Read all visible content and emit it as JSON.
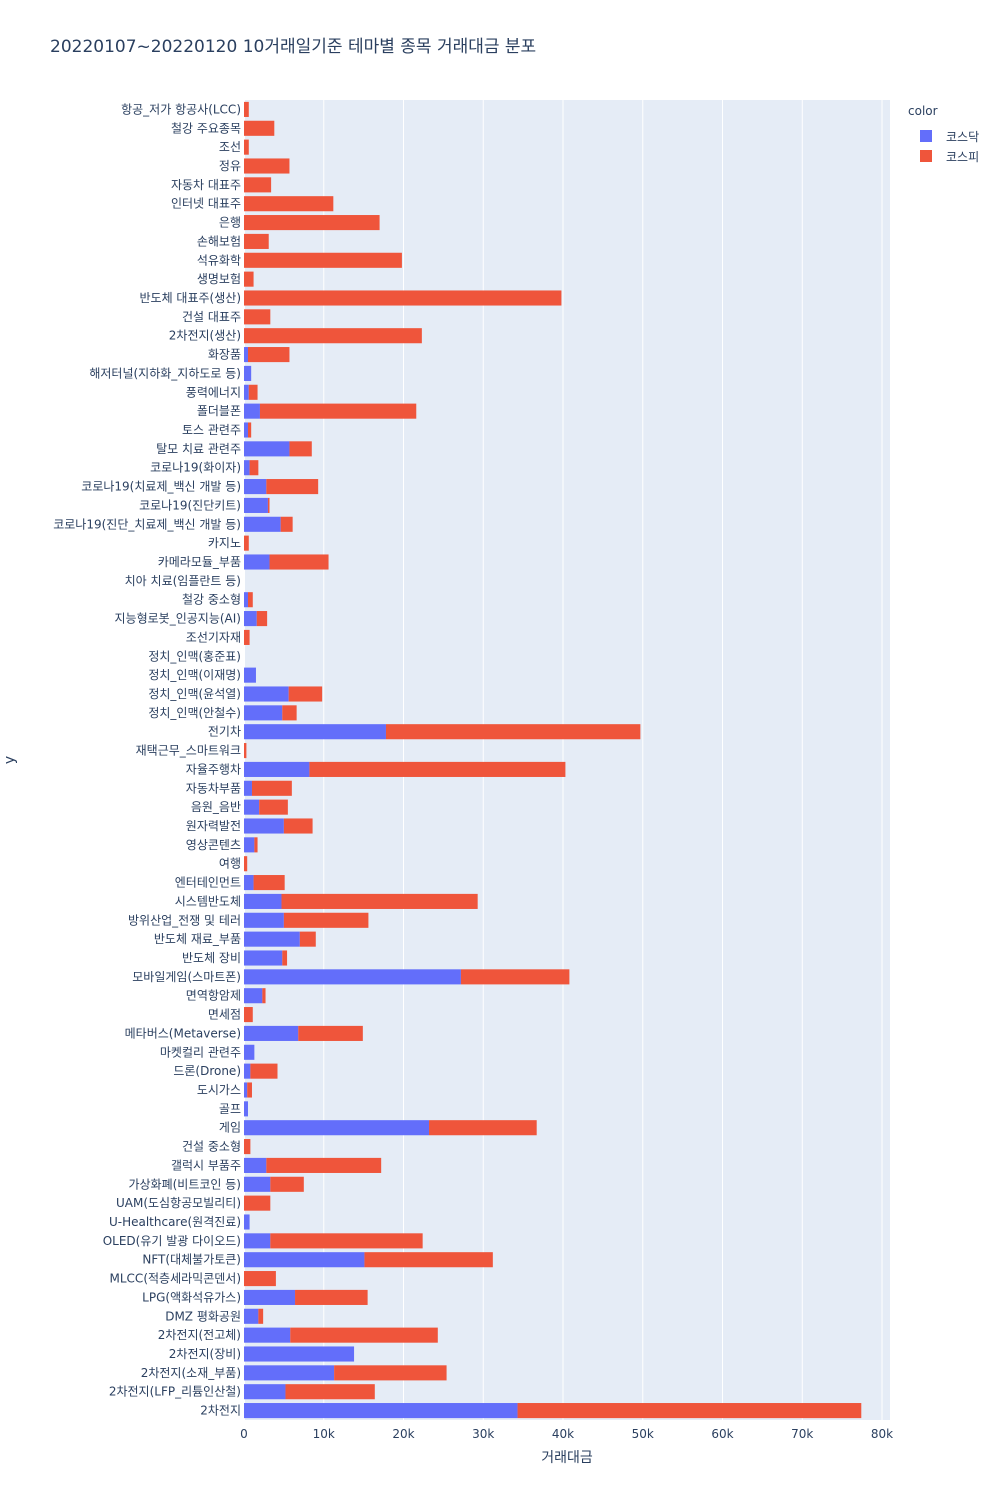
{
  "chart_data": {
    "type": "bar",
    "orientation": "horizontal",
    "barmode": "stack",
    "title": "20220107~20220120 10거래일기준 테마별 종목 거래대금 분포",
    "xlabel": "거래대금",
    "ylabel": "y",
    "xlim": [
      0,
      81000
    ],
    "xticks": [
      0,
      10000,
      20000,
      30000,
      40000,
      50000,
      60000,
      70000,
      80000
    ],
    "xtick_labels": [
      "0",
      "10k",
      "20k",
      "30k",
      "40k",
      "50k",
      "60k",
      "70k",
      "80k"
    ],
    "grid": true,
    "legend": {
      "title": "color",
      "position": "top-right"
    },
    "categories": [
      "항공_저가 항공사(LCC)",
      "철강 주요종목",
      "조선",
      "정유",
      "자동차 대표주",
      "인터넷 대표주",
      "은행",
      "손해보험",
      "석유화학",
      "생명보험",
      "반도체 대표주(생산)",
      "건설 대표주",
      "2차전지(생산)",
      "화장품",
      "해저터널(지하화_지하도로 등)",
      "풍력에너지",
      "폴더블폰",
      "토스 관련주",
      "탈모 치료 관련주",
      "코로나19(화이자)",
      "코로나19(치료제_백신 개발 등)",
      "코로나19(진단키트)",
      "코로나19(진단_치료제_백신 개발 등)",
      "카지노",
      "카메라모듈_부품",
      "치아 치료(임플란트 등)",
      "철강 중소형",
      "지능형로봇_인공지능(AI)",
      "조선기자재",
      "정치_인맥(홍준표)",
      "정치_인맥(이재명)",
      "정치_인맥(윤석열)",
      "정치_인맥(안철수)",
      "전기차",
      "재택근무_스마트워크",
      "자율주행차",
      "자동차부품",
      "음원_음반",
      "원자력발전",
      "영상콘텐츠",
      "여행",
      "엔터테인먼트",
      "시스템반도체",
      "방위산업_전쟁 및 테러",
      "반도체 재료_부품",
      "반도체 장비",
      "모바일게임(스마트폰)",
      "면역항암제",
      "면세점",
      "메타버스(Metaverse)",
      "마켓컬리 관련주",
      "드론(Drone)",
      "도시가스",
      "골프",
      "게임",
      "건설 중소형",
      "갤럭시 부품주",
      "가상화폐(비트코인 등)",
      "UAM(도심항공모빌리티)",
      "U-Healthcare(원격진료)",
      "OLED(유기 발광 다이오드)",
      "NFT(대체불가토큰)",
      "MLCC(적층세라믹콘덴서)",
      "LPG(액화석유가스)",
      "DMZ 평화공원",
      "2차전지(전고체)",
      "2차전지(장비)",
      "2차전지(소재_부품)",
      "2차전지(LFP_리튬인산철)",
      "2차전지"
    ],
    "series": [
      {
        "name": "코스닥",
        "color": "#636efa",
        "values": [
          0,
          0,
          0,
          0,
          0,
          0,
          0,
          0,
          0,
          0,
          0,
          0,
          0,
          500,
          900,
          600,
          2000,
          500,
          5700,
          700,
          2800,
          3000,
          4600,
          0,
          3200,
          0,
          500,
          1600,
          0,
          0,
          1500,
          5600,
          4800,
          17800,
          0,
          8200,
          1000,
          1900,
          5000,
          1300,
          0,
          1200,
          4700,
          5000,
          7000,
          4800,
          27200,
          2300,
          0,
          6800,
          1300,
          800,
          400,
          500,
          23200,
          0,
          2800,
          3300,
          0,
          700,
          3300,
          15100,
          0,
          6400,
          1800,
          5800,
          13800,
          11300,
          5200,
          34300
        ]
      },
      {
        "name": "코스피",
        "color": "#ef553b",
        "values": [
          600,
          3800,
          600,
          5700,
          3400,
          11200,
          17000,
          3100,
          19800,
          1200,
          39800,
          3300,
          22300,
          5200,
          0,
          1100,
          19600,
          400,
          2800,
          1100,
          6500,
          200,
          1500,
          600,
          7400,
          0,
          600,
          1300,
          700,
          0,
          0,
          4200,
          1800,
          31900,
          300,
          32100,
          5000,
          3600,
          3600,
          400,
          400,
          3900,
          24600,
          10600,
          2000,
          600,
          13600,
          400,
          1100,
          8100,
          0,
          3400,
          600,
          0,
          13500,
          800,
          14400,
          4200,
          3300,
          0,
          19100,
          16100,
          4000,
          9100,
          600,
          18500,
          0,
          14100,
          11200,
          43100
        ]
      }
    ]
  }
}
